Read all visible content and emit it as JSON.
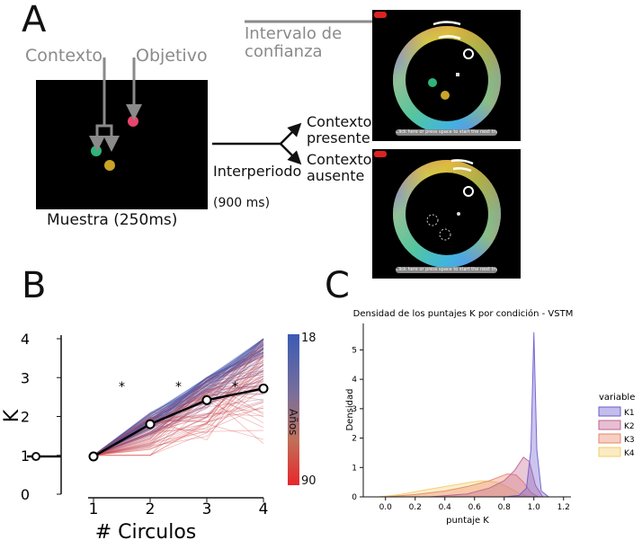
{
  "panel_a": {
    "letter": "A",
    "contexto": "Contexto",
    "objetivo": "Objetivo",
    "intervalo": [
      "Intervalo de",
      "confianza"
    ],
    "muestra": "Muestra (250ms)",
    "interperiodo": "Interperiodo",
    "interperiodo_ms": "(900 ms)",
    "contexto_presente": [
      "Contexto",
      "presente"
    ],
    "contexto_ausente": [
      "Contexto",
      "ausente"
    ],
    "trial_button": "Click here or press space to start the next trial",
    "colors": {
      "target": "#e8456b",
      "context_green": "#2fb57a",
      "context_gold": "#c9a428",
      "arrow_grey": "#8a8a8a"
    }
  },
  "panel_b": {
    "letter": "B",
    "colorbar_label": "Años",
    "colorbar_min": "18",
    "colorbar_max": "90",
    "significance": [
      "*",
      "*",
      "*"
    ]
  },
  "panel_c": {
    "letter": "C",
    "legend_title": "variable"
  },
  "chart_data": [
    {
      "type": "line",
      "title": "",
      "xlabel": "# Circulos",
      "ylabel": "K",
      "x": [
        1,
        2,
        3,
        4
      ],
      "xticks": [
        "1",
        "2",
        "3",
        "4"
      ],
      "yticks": [
        "0",
        "1",
        "2",
        "3",
        "4"
      ],
      "ylim": [
        0,
        4
      ],
      "series": [
        {
          "values": [
            0.97,
            1.8,
            2.42,
            2.72
          ]
        }
      ],
      "reference_value": 0.97,
      "colorbar": {
        "label": "Años",
        "min": 18,
        "max": 90,
        "low_color": "#e8262b",
        "high_color": "#3b5bb5"
      }
    },
    {
      "type": "area",
      "title": "Densidad de los puntajes K por condición - VSTM",
      "xlabel": "puntaje K",
      "ylabel": "Densidad",
      "xticks": [
        "0.0",
        "0.2",
        "0.4",
        "0.6",
        "0.8",
        "1.0",
        "1.2"
      ],
      "yticks": [
        "0",
        "1",
        "2",
        "3",
        "4",
        "5"
      ],
      "xlim": [
        -0.15,
        1.25
      ],
      "ylim": [
        0,
        5.9
      ],
      "legend_title": "variable",
      "legend_position": "right",
      "series": [
        {
          "name": "K1",
          "color": "#6a5acd",
          "x": [
            0.8,
            0.9,
            0.95,
            0.98,
            1.0,
            1.02,
            1.05,
            1.1
          ],
          "y": [
            0.0,
            0.05,
            0.3,
            1.6,
            5.6,
            1.6,
            0.2,
            0.0
          ]
        },
        {
          "name": "K2",
          "color": "#c0608f",
          "x": [
            0.3,
            0.55,
            0.7,
            0.8,
            0.87,
            0.93,
            0.97,
            1.01,
            1.06
          ],
          "y": [
            0.0,
            0.1,
            0.3,
            0.55,
            0.9,
            1.35,
            1.2,
            0.4,
            0.0
          ]
        },
        {
          "name": "K3",
          "color": "#e8866a",
          "x": [
            0.0,
            0.2,
            0.4,
            0.55,
            0.7,
            0.82,
            0.88,
            0.93,
            0.98,
            1.03
          ],
          "y": [
            0.0,
            0.08,
            0.2,
            0.35,
            0.55,
            0.78,
            0.75,
            0.5,
            0.15,
            0.0
          ]
        },
        {
          "name": "K4",
          "color": "#f2cd6a",
          "x": [
            -0.05,
            0.1,
            0.25,
            0.4,
            0.55,
            0.65,
            0.75,
            0.82,
            0.9,
            0.97
          ],
          "y": [
            0.0,
            0.08,
            0.22,
            0.35,
            0.48,
            0.55,
            0.5,
            0.35,
            0.12,
            0.0
          ]
        }
      ]
    }
  ]
}
